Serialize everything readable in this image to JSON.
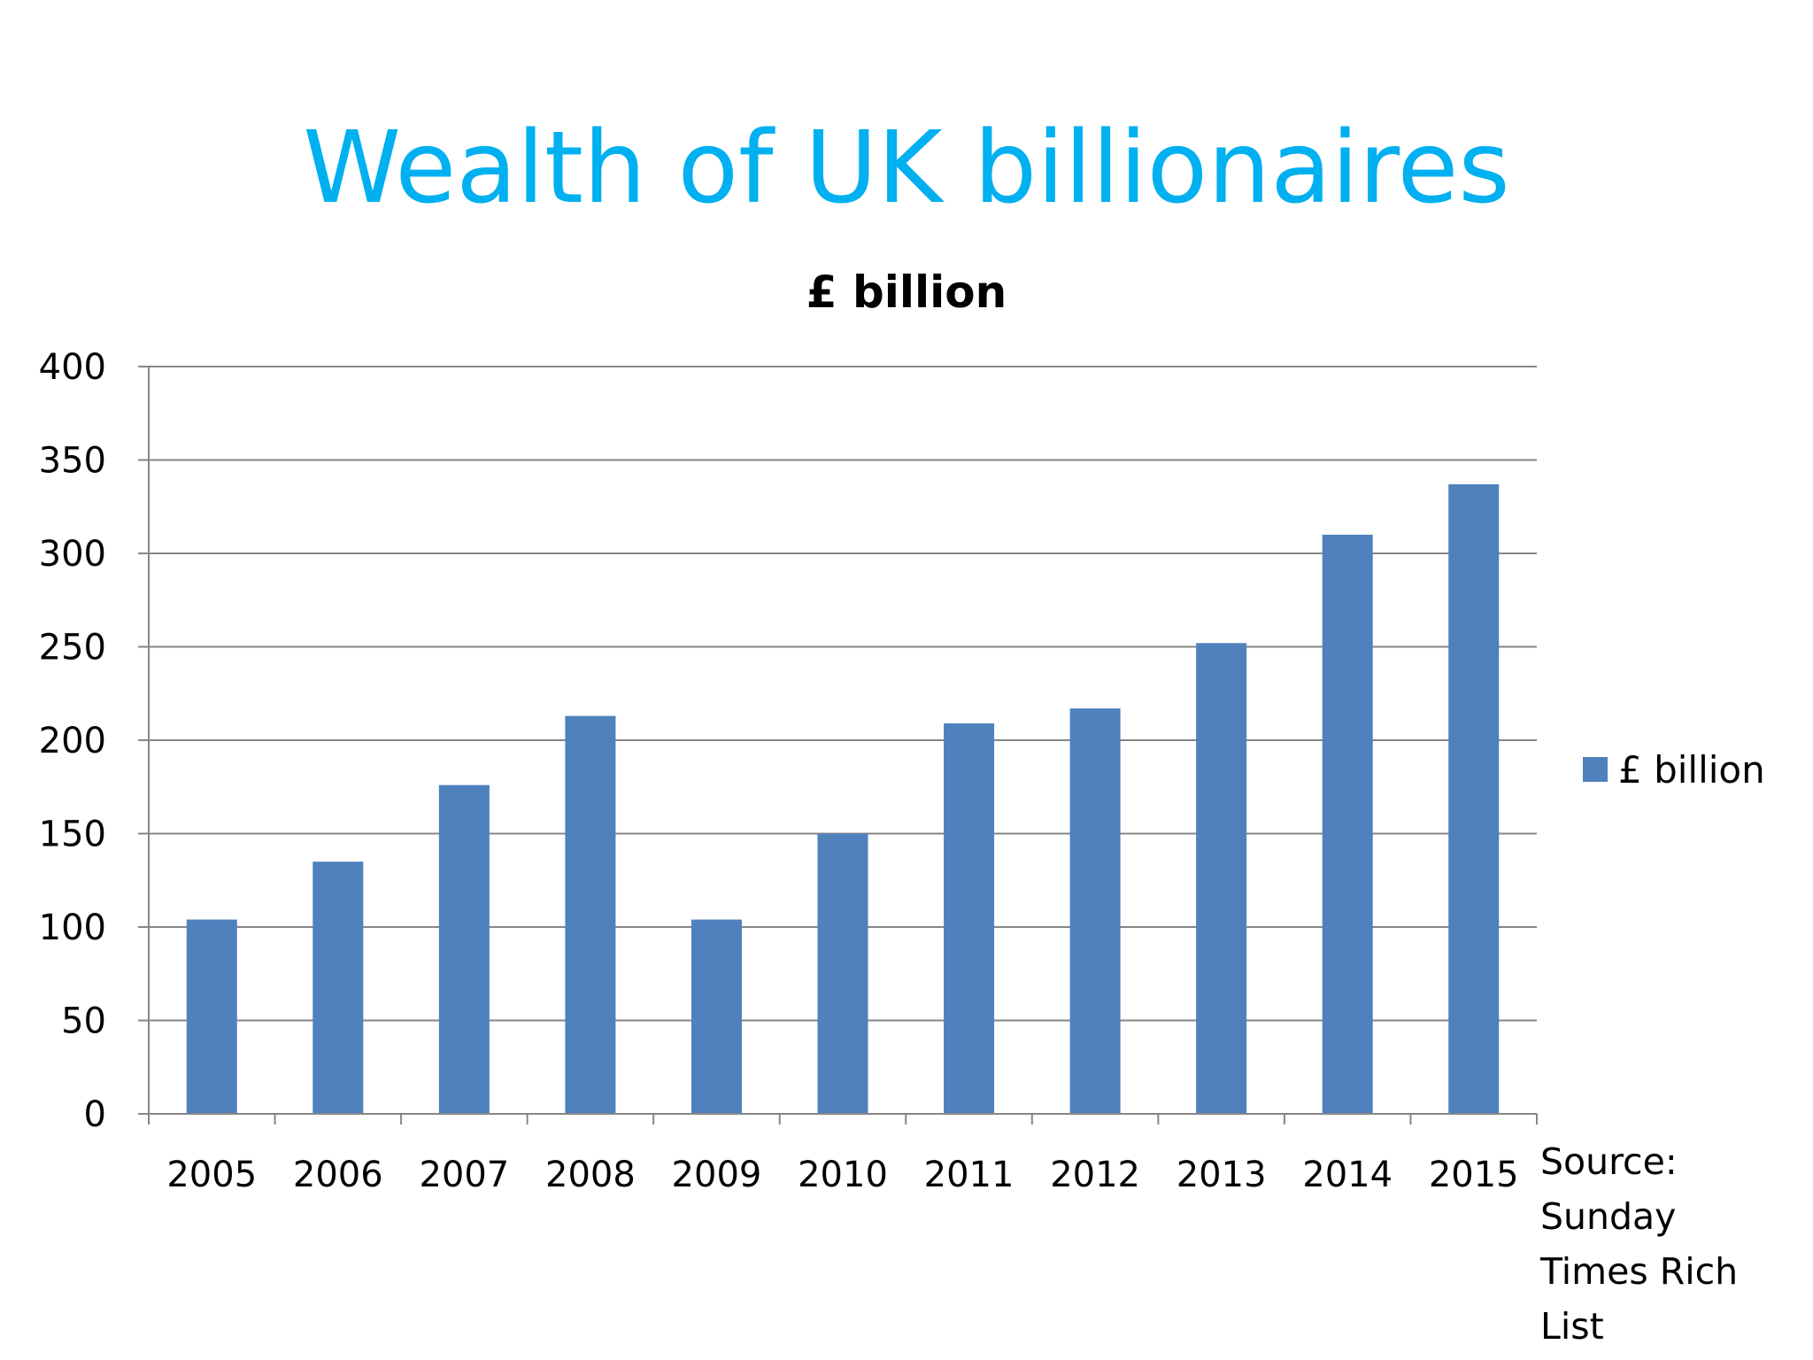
{
  "slide": {
    "title": "Wealth of UK billionaires"
  },
  "source_note": [
    "Source:",
    "Sunday",
    "Times Rich",
    "List"
  ],
  "colors": {
    "title": "#00b0f0",
    "bar": "#4f81bd",
    "gridline": "#868686",
    "axis": "#868686"
  },
  "chart_data": {
    "type": "bar",
    "title": "£ billion",
    "xlabel": "",
    "ylabel": "",
    "categories": [
      "2005",
      "2006",
      "2007",
      "2008",
      "2009",
      "2010",
      "2011",
      "2012",
      "2013",
      "2014",
      "2015"
    ],
    "series": [
      {
        "name": "£ billion",
        "values": [
          104,
          135,
          176,
          213,
          104,
          150,
          209,
          217,
          252,
          310,
          337
        ]
      }
    ],
    "ylim": [
      0,
      400
    ],
    "yticks": [
      0,
      50,
      100,
      150,
      200,
      250,
      300,
      350,
      400
    ],
    "grid": true,
    "legend": "right"
  }
}
